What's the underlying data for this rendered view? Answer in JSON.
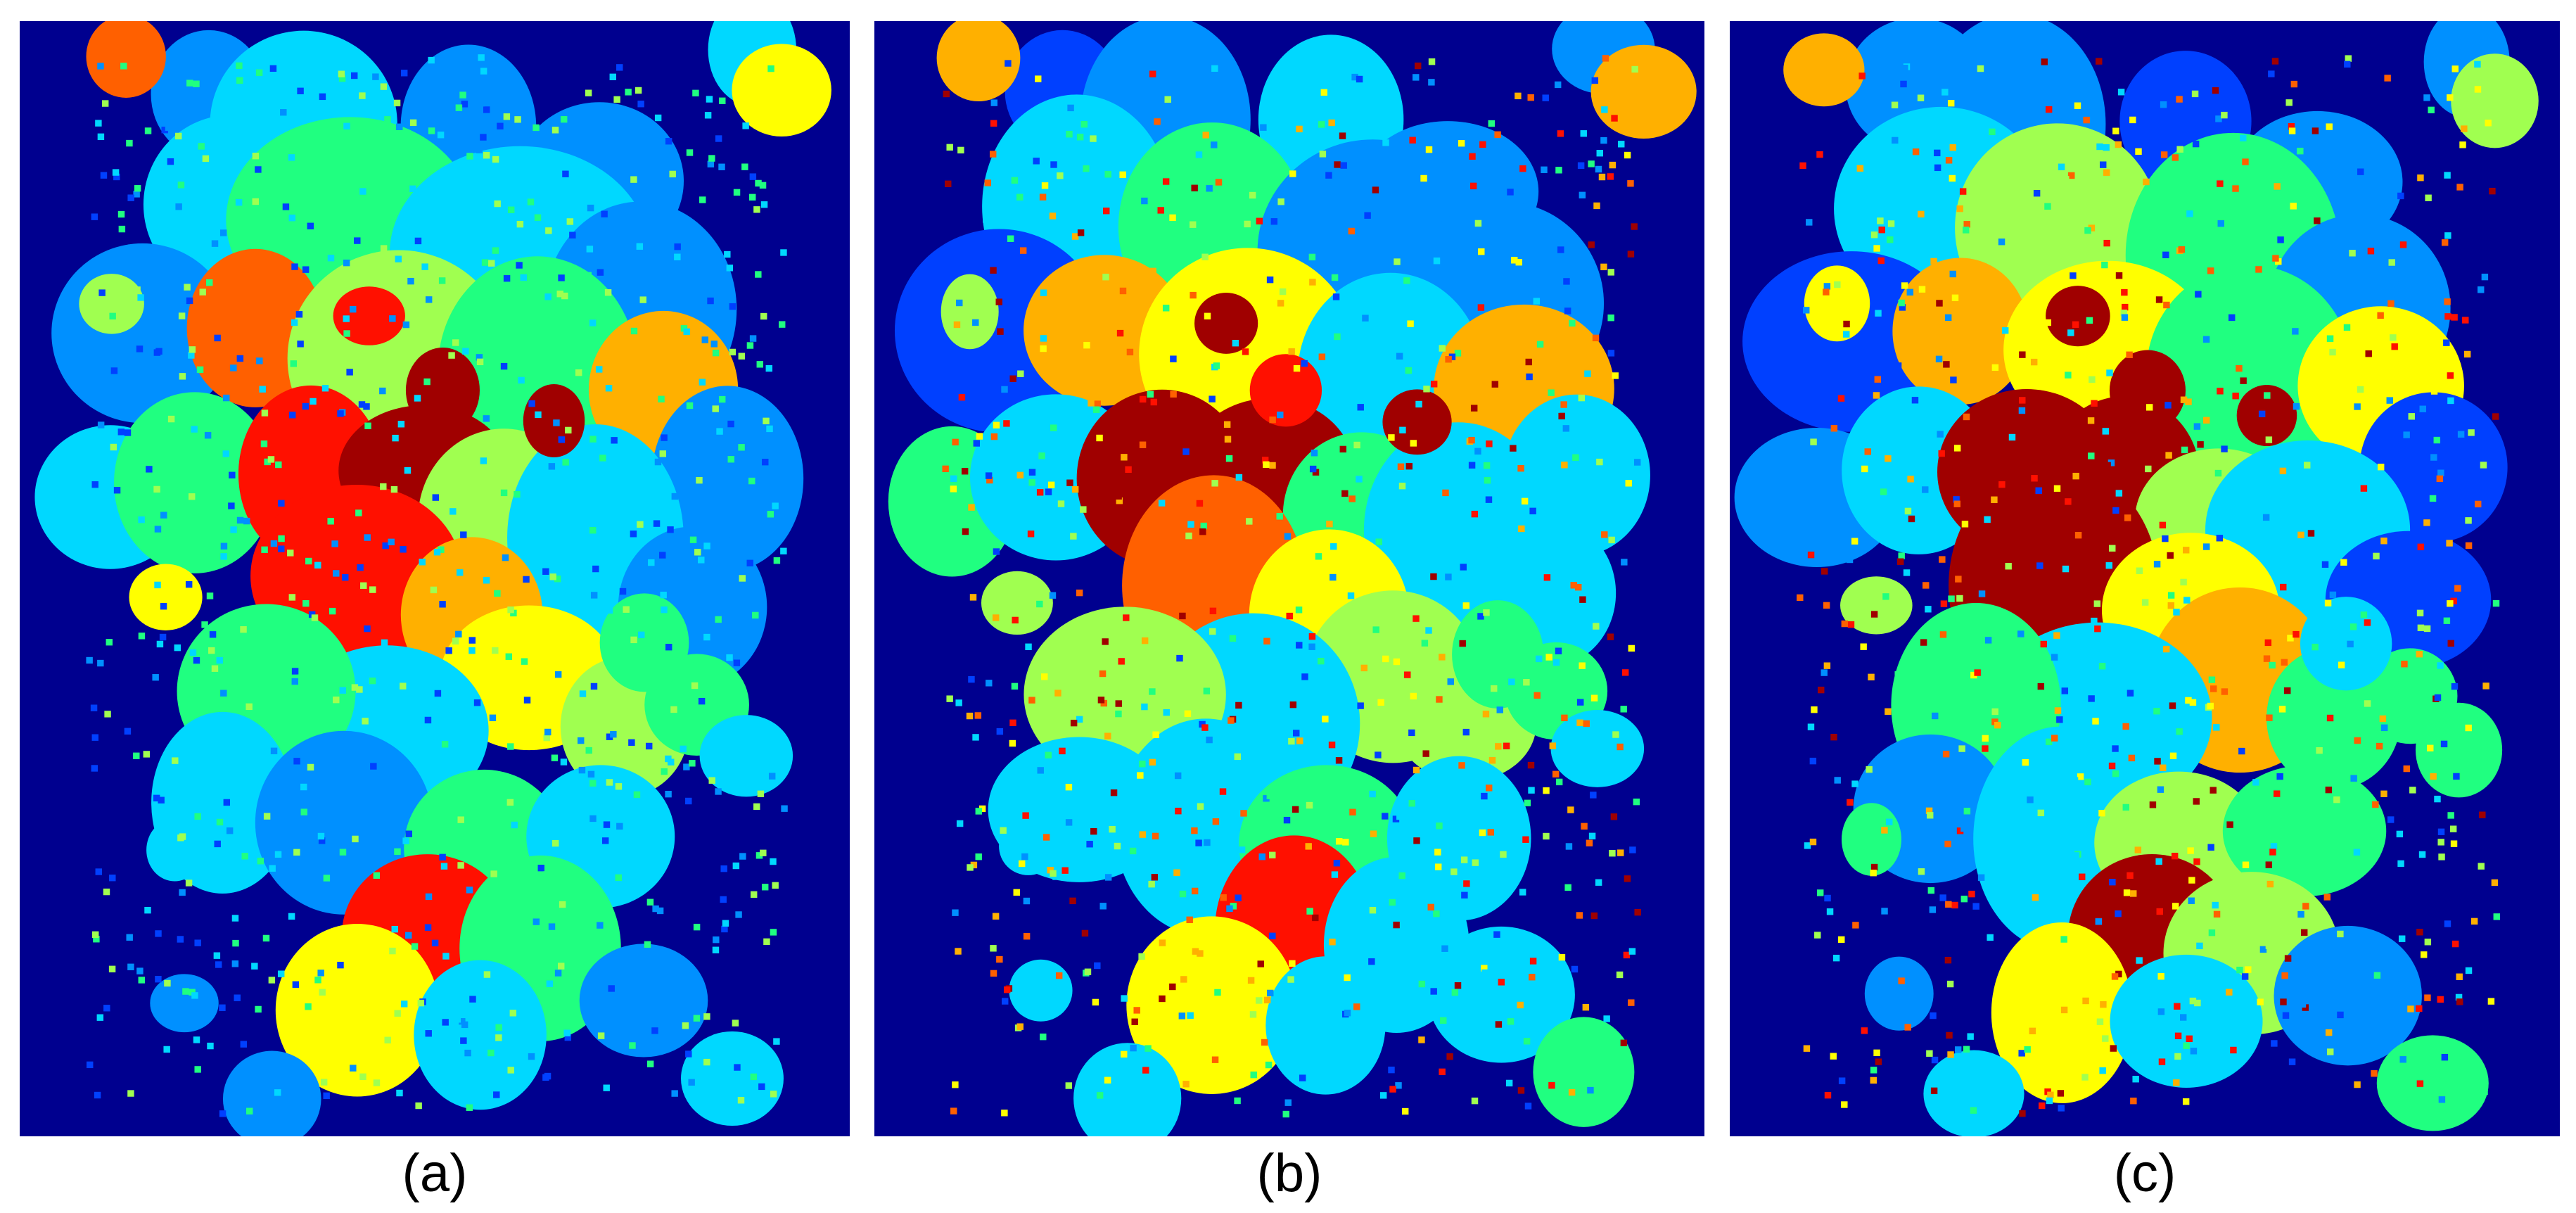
{
  "panels": [
    {
      "id": "a",
      "label": "(a)"
    },
    {
      "id": "b",
      "label": "(b)"
    },
    {
      "id": "c",
      "label": "(c)"
    }
  ],
  "colormap": {
    "background": "#00008f",
    "levels": [
      "#0000cc",
      "#0040ff",
      "#0090ff",
      "#00d8ff",
      "#20ff80",
      "#a0ff50",
      "#ffff00",
      "#ffb000",
      "#ff6000",
      "#ff1000",
      "#a00000"
    ]
  }
}
